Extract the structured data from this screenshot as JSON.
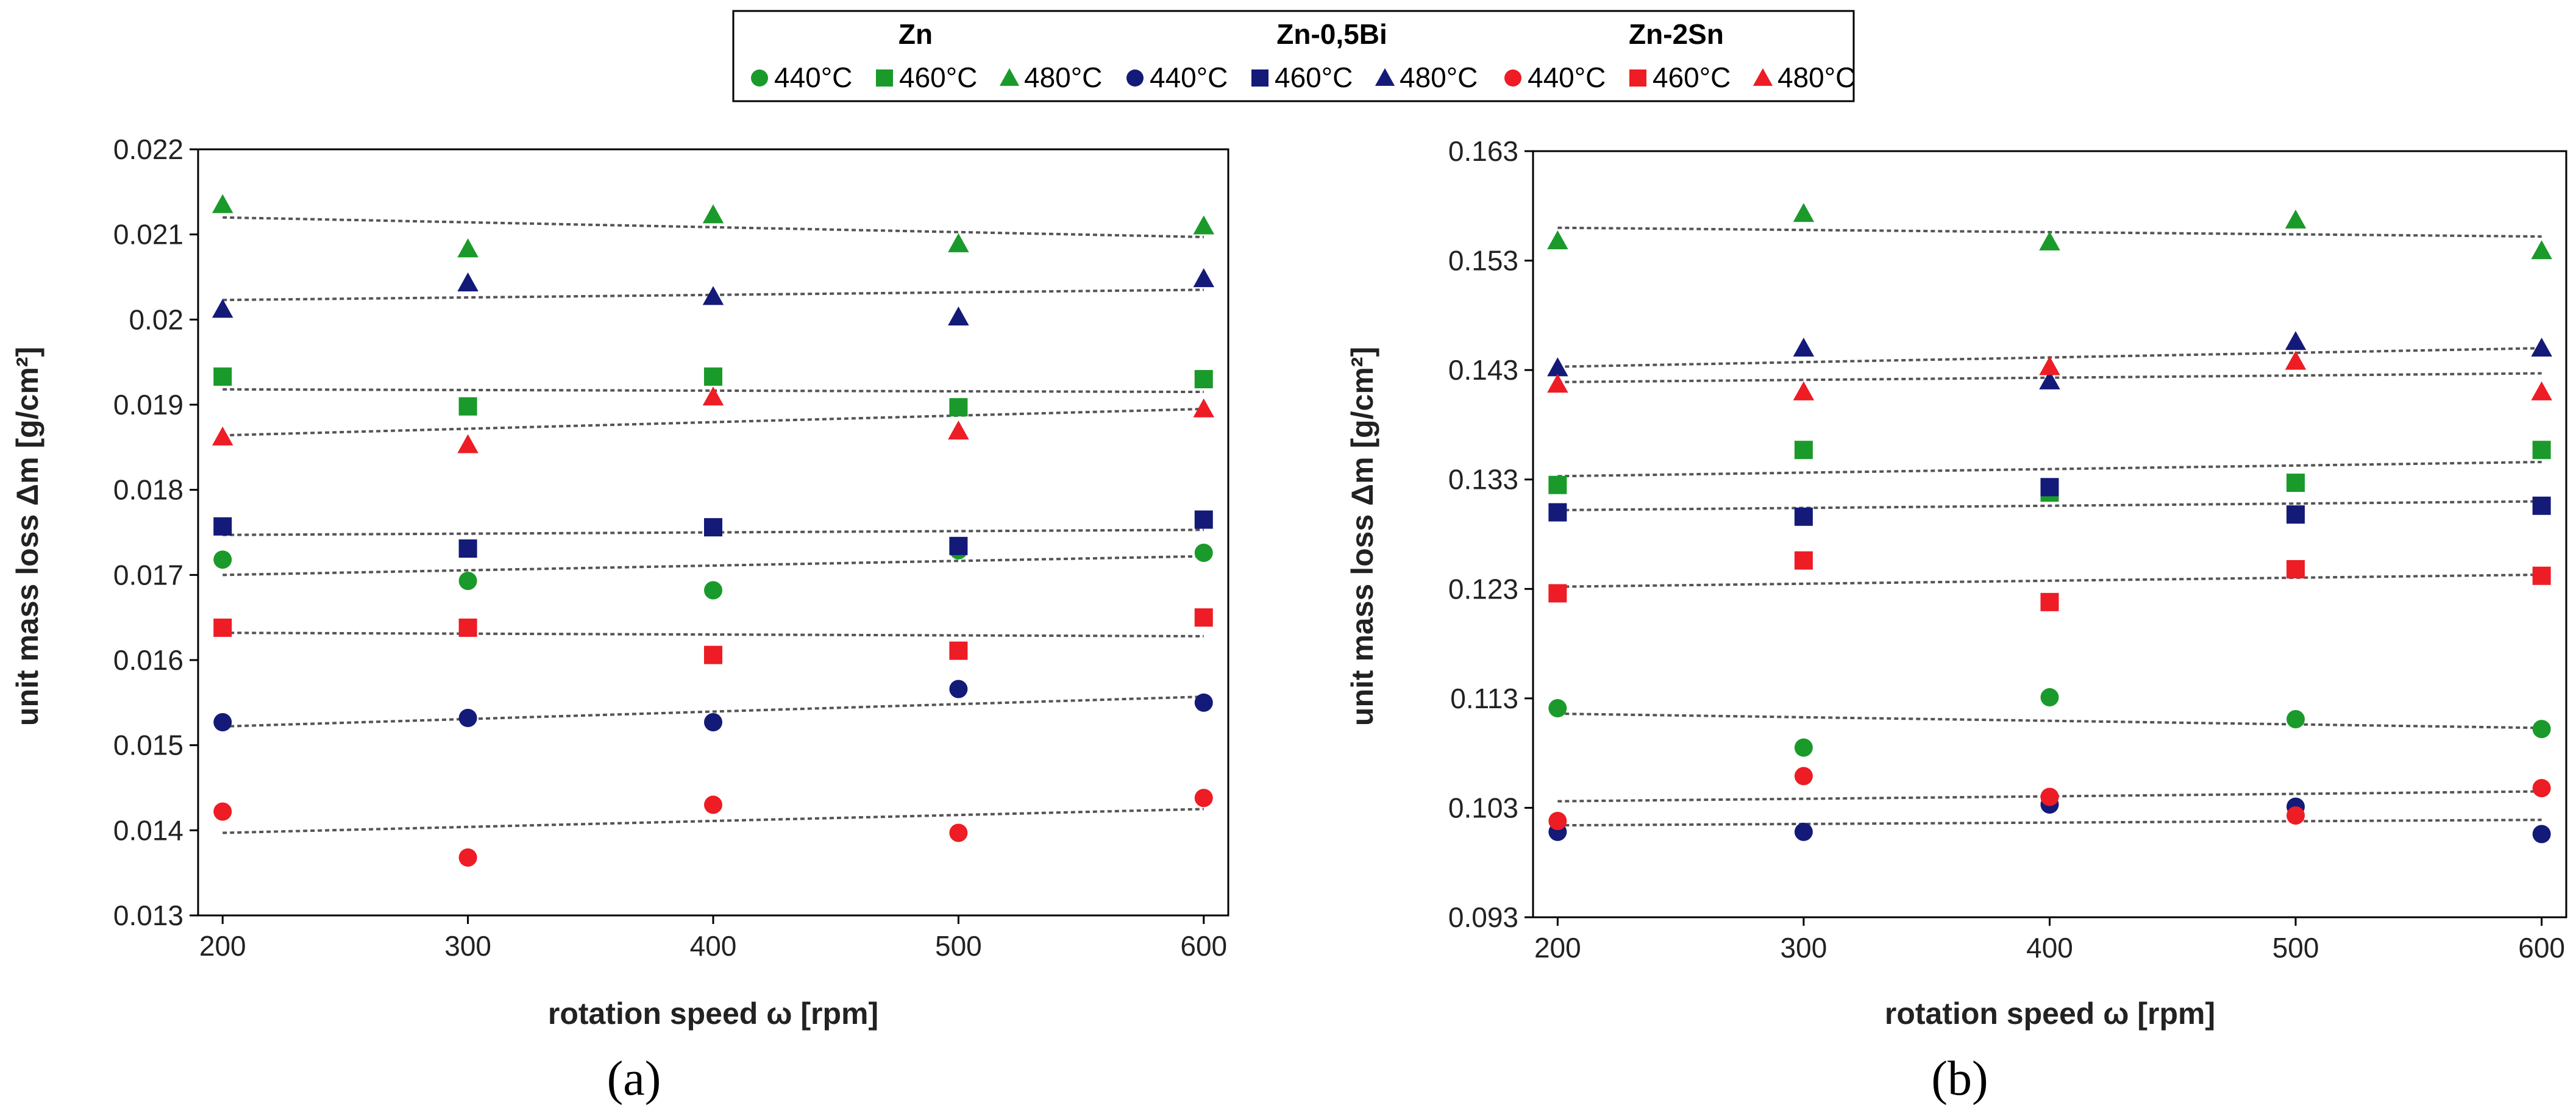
{
  "legend": {
    "groups": [
      {
        "name": "Zn",
        "color": "#1a9a2a",
        "entries": [
          "440°C",
          "460°C",
          "480°C"
        ]
      },
      {
        "name": "Zn-0,5Bi",
        "color": "#141a78",
        "entries": [
          "440°C",
          "460°C",
          "480°C"
        ]
      },
      {
        "name": "Zn-2Sn",
        "color": "#ee1c24",
        "entries": [
          "440°C",
          "460°C",
          "480°C"
        ]
      }
    ],
    "markers": [
      "circle",
      "square",
      "triangle"
    ]
  },
  "chart_data": [
    {
      "type": "scatter",
      "panel_label": "(a)",
      "xlabel": "rotation speed ω [rpm]",
      "ylabel": "unit mass loss  Δm [g/cm²]",
      "xlim": [
        190,
        610
      ],
      "ylim": [
        0.013,
        0.022
      ],
      "xticks": [
        200,
        300,
        400,
        500,
        600
      ],
      "yticks": [
        0.013,
        0.014,
        0.015,
        0.016,
        0.017,
        0.018,
        0.019,
        0.02,
        0.021,
        0.022
      ],
      "ytick_labels": [
        "0.013",
        "0.014",
        "0.015",
        "0.016",
        "0.017",
        "0.018",
        "0.019",
        "0.02",
        "0.021",
        "0.022"
      ],
      "x": [
        200,
        300,
        400,
        500,
        600
      ],
      "series": [
        {
          "name": "Zn 440°C",
          "marker": "circle",
          "color": "#1a9a2a",
          "values": [
            0.01718,
            0.01693,
            0.01682,
            0.01729,
            0.01726
          ],
          "trend": [
            0.017,
            0.01722
          ]
        },
        {
          "name": "Zn 460°C",
          "marker": "square",
          "color": "#1a9a2a",
          "values": [
            0.01933,
            0.01898,
            0.01933,
            0.01897,
            0.0193
          ],
          "trend": [
            0.01918,
            0.01915
          ]
        },
        {
          "name": "Zn 480°C",
          "marker": "triangle",
          "color": "#1a9a2a",
          "values": [
            0.02135,
            0.02083,
            0.02123,
            0.02089,
            0.0211
          ],
          "trend": [
            0.0212,
            0.02097
          ]
        },
        {
          "name": "Zn-0,5Bi 440°C",
          "marker": "circle",
          "color": "#141a78",
          "values": [
            0.01527,
            0.01532,
            0.01527,
            0.01566,
            0.0155
          ],
          "trend": [
            0.01522,
            0.01557
          ]
        },
        {
          "name": "Zn-0,5Bi 460°C",
          "marker": "square",
          "color": "#141a78",
          "values": [
            0.01757,
            0.01731,
            0.01756,
            0.01734,
            0.01765
          ],
          "trend": [
            0.01747,
            0.01753
          ]
        },
        {
          "name": "Zn-0,5Bi 480°C",
          "marker": "triangle",
          "color": "#141a78",
          "values": [
            0.02012,
            0.02043,
            0.02027,
            0.02003,
            0.02048
          ],
          "trend": [
            0.02023,
            0.02035
          ]
        },
        {
          "name": "Zn-2Sn 440°C",
          "marker": "circle",
          "color": "#ee1c24",
          "values": [
            0.01422,
            0.01368,
            0.0143,
            0.01397,
            0.01438
          ],
          "trend": [
            0.01397,
            0.01425
          ]
        },
        {
          "name": "Zn-2Sn 460°C",
          "marker": "square",
          "color": "#ee1c24",
          "values": [
            0.01638,
            0.01638,
            0.01606,
            0.01611,
            0.0165
          ],
          "trend": [
            0.01632,
            0.01628
          ]
        },
        {
          "name": "Zn-2Sn 480°C",
          "marker": "triangle",
          "color": "#ee1c24",
          "values": [
            0.01862,
            0.01853,
            0.01909,
            0.01869,
            0.01895
          ],
          "trend": [
            0.01864,
            0.01895
          ]
        }
      ]
    },
    {
      "type": "scatter",
      "panel_label": "(b)",
      "xlabel": "rotation speed ω [rpm]",
      "ylabel": "unit mass loss  Δm [g/cm²]",
      "xlim": [
        190,
        610
      ],
      "ylim": [
        0.093,
        0.163
      ],
      "xticks": [
        200,
        300,
        400,
        500,
        600
      ],
      "yticks": [
        0.093,
        0.103,
        0.113,
        0.123,
        0.133,
        0.143,
        0.153,
        0.163
      ],
      "ytick_labels": [
        "0.093",
        "0.103",
        "0.113",
        "0.123",
        "0.133",
        "0.143",
        "0.153",
        "0.163"
      ],
      "x": [
        200,
        300,
        400,
        500,
        600
      ],
      "series": [
        {
          "name": "Zn 440°C",
          "marker": "circle",
          "color": "#1a9a2a",
          "values": [
            0.1121,
            0.1085,
            0.1131,
            0.1111,
            0.1102
          ],
          "trend": [
            0.1116,
            0.1103
          ]
        },
        {
          "name": "Zn 460°C",
          "marker": "square",
          "color": "#1a9a2a",
          "values": [
            0.1325,
            0.1357,
            0.1318,
            0.1327,
            0.1357
          ],
          "trend": [
            0.1333,
            0.1346
          ]
        },
        {
          "name": "Zn 480°C",
          "marker": "triangle",
          "color": "#1a9a2a",
          "values": [
            0.1548,
            0.1573,
            0.1547,
            0.1567,
            0.1539
          ],
          "trend": [
            0.156,
            0.1552
          ]
        },
        {
          "name": "Zn-0,5Bi 440°C",
          "marker": "circle",
          "color": "#141a78",
          "values": [
            0.1008,
            0.1008,
            0.1033,
            0.1031,
            0.1006
          ],
          "trend": [
            0.1014,
            0.1019
          ]
        },
        {
          "name": "Zn-0,5Bi 460°C",
          "marker": "square",
          "color": "#141a78",
          "values": [
            0.13,
            0.1296,
            0.1323,
            0.1298,
            0.1306
          ],
          "trend": [
            0.1302,
            0.131
          ]
        },
        {
          "name": "Zn-0,5Bi 480°C",
          "marker": "triangle",
          "color": "#141a78",
          "values": [
            0.1432,
            0.145,
            0.142,
            0.1456,
            0.145
          ],
          "trend": [
            0.1433,
            0.145
          ]
        },
        {
          "name": "Zn-2Sn 440°C",
          "marker": "circle",
          "color": "#ee1c24",
          "values": [
            0.1018,
            0.1059,
            0.104,
            0.1023,
            0.1048
          ],
          "trend": [
            0.1036,
            0.1045
          ]
        },
        {
          "name": "Zn-2Sn 460°C",
          "marker": "square",
          "color": "#ee1c24",
          "values": [
            0.1226,
            0.1256,
            0.1218,
            0.1248,
            0.1242
          ],
          "trend": [
            0.1232,
            0.1243
          ]
        },
        {
          "name": "Zn-2Sn 480°C",
          "marker": "triangle",
          "color": "#ee1c24",
          "values": [
            0.1417,
            0.141,
            0.1433,
            0.1438,
            0.141
          ],
          "trend": [
            0.1419,
            0.1427
          ]
        }
      ]
    }
  ]
}
